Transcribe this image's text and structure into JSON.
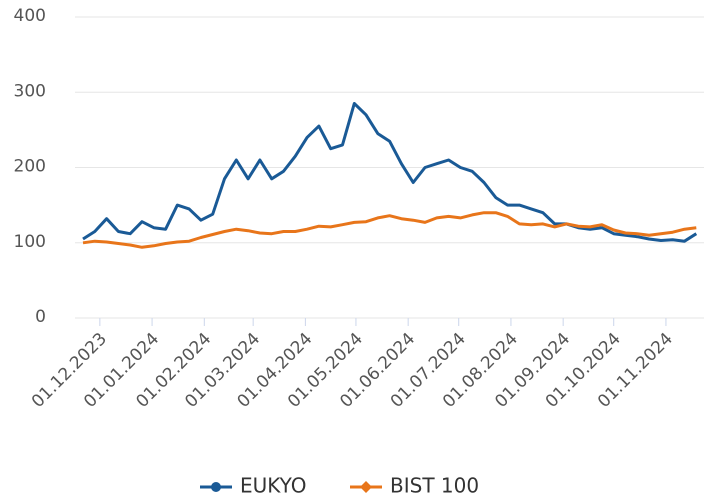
{
  "chart_data": {
    "type": "line",
    "x": [
      "2023-11-21",
      "2023-11-28",
      "2023-12-05",
      "2023-12-12",
      "2023-12-19",
      "2023-12-26",
      "2024-01-02",
      "2024-01-09",
      "2024-01-16",
      "2024-01-23",
      "2024-01-30",
      "2024-02-06",
      "2024-02-13",
      "2024-02-20",
      "2024-02-27",
      "2024-03-05",
      "2024-03-12",
      "2024-03-19",
      "2024-03-26",
      "2024-04-02",
      "2024-04-09",
      "2024-04-16",
      "2024-04-23",
      "2024-04-30",
      "2024-05-07",
      "2024-05-14",
      "2024-05-21",
      "2024-05-28",
      "2024-06-04",
      "2024-06-11",
      "2024-06-18",
      "2024-06-25",
      "2024-07-02",
      "2024-07-09",
      "2024-07-16",
      "2024-07-23",
      "2024-07-30",
      "2024-08-06",
      "2024-08-13",
      "2024-08-20",
      "2024-08-27",
      "2024-09-03",
      "2024-09-10",
      "2024-09-17",
      "2024-09-24",
      "2024-10-01",
      "2024-10-08",
      "2024-10-15",
      "2024-10-22",
      "2024-10-29",
      "2024-11-05",
      "2024-11-12",
      "2024-11-19"
    ],
    "series": [
      {
        "name": "EUKYO",
        "color": "#1a5a96",
        "values": [
          105,
          115,
          132,
          115,
          112,
          128,
          120,
          118,
          150,
          145,
          130,
          138,
          185,
          210,
          185,
          210,
          185,
          195,
          215,
          240,
          255,
          225,
          230,
          285,
          270,
          245,
          235,
          205,
          180,
          200,
          205,
          210,
          200,
          195,
          180,
          160,
          150,
          150,
          145,
          140,
          125,
          125,
          120,
          118,
          120,
          112,
          110,
          108,
          105,
          103,
          104,
          102,
          112
        ]
      },
      {
        "name": "BIST 100",
        "color": "#e8751a",
        "values": [
          100,
          102,
          101,
          99,
          97,
          94,
          96,
          99,
          101,
          102,
          107,
          111,
          115,
          118,
          116,
          113,
          112,
          115,
          115,
          118,
          122,
          121,
          124,
          127,
          128,
          133,
          136,
          132,
          130,
          127,
          133,
          135,
          133,
          137,
          140,
          140,
          135,
          125,
          124,
          125,
          121,
          125,
          122,
          121,
          124,
          117,
          113,
          112,
          110,
          112,
          114,
          118,
          120
        ]
      }
    ],
    "xlim": [
      "2023-11-21",
      "2024-11-23"
    ],
    "xticks": [
      {
        "value": "2023-12-01",
        "label": "01.12.2023"
      },
      {
        "value": "2024-01-01",
        "label": "01.01.2024"
      },
      {
        "value": "2024-02-01",
        "label": "01.02.2024"
      },
      {
        "value": "2024-03-01",
        "label": "01.03.2024"
      },
      {
        "value": "2024-04-01",
        "label": "01.04.2024"
      },
      {
        "value": "2024-05-01",
        "label": "01.05.2024"
      },
      {
        "value": "2024-06-01",
        "label": "01.06.2024"
      },
      {
        "value": "2024-07-01",
        "label": "01.07.2024"
      },
      {
        "value": "2024-08-01",
        "label": "01.08.2024"
      },
      {
        "value": "2024-09-01",
        "label": "01.09.2024"
      },
      {
        "value": "2024-10-01",
        "label": "01.10.2024"
      },
      {
        "value": "2024-11-01",
        "label": "01.11.2024"
      }
    ],
    "ylim": [
      0,
      400
    ],
    "yticks": [
      0,
      100,
      200,
      300,
      400
    ],
    "grid": true,
    "legend": "bottom"
  }
}
